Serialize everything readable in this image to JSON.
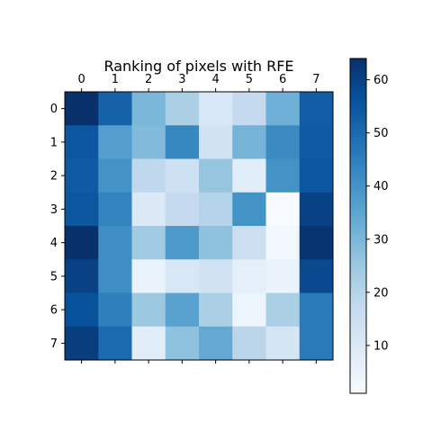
{
  "chart_data": {
    "type": "heatmap",
    "title": "Ranking of pixels with RFE",
    "xticks": [
      "0",
      "1",
      "2",
      "3",
      "4",
      "5",
      "6",
      "7"
    ],
    "yticks": [
      "0",
      "1",
      "2",
      "3",
      "4",
      "5",
      "6",
      "7"
    ],
    "x_axis_position": "top",
    "colormap": "Blues",
    "color_range": [
      1,
      64
    ],
    "colorbar": {
      "position": "right",
      "ticks": [
        "10",
        "20",
        "30",
        "40",
        "50",
        "60"
      ],
      "tick_values": [
        10,
        20,
        30,
        40,
        50,
        60
      ]
    },
    "grid": false,
    "values": [
      [
        64,
        52,
        30,
        22,
        11,
        17,
        32,
        53
      ],
      [
        55,
        37,
        29,
        43,
        13,
        31,
        42,
        54
      ],
      [
        54,
        40,
        18,
        14,
        26,
        8,
        40,
        55
      ],
      [
        55,
        44,
        10,
        17,
        20,
        40,
        1,
        60
      ],
      [
        64,
        41,
        24,
        38,
        27,
        15,
        3,
        63
      ],
      [
        60,
        41,
        5,
        11,
        13,
        7,
        5,
        58
      ],
      [
        56,
        45,
        25,
        36,
        22,
        4,
        22,
        46
      ],
      [
        61,
        50,
        8,
        27,
        34,
        19,
        12,
        46
      ]
    ]
  }
}
